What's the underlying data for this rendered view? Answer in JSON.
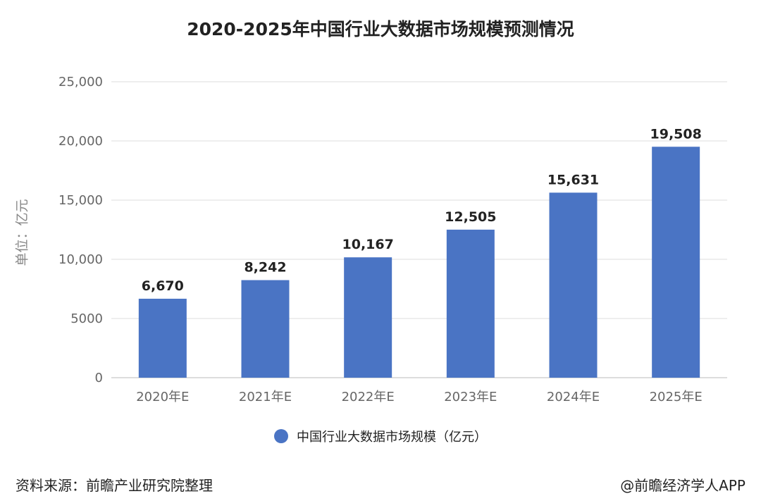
{
  "title": "2020-2025年中国行业大数据市场规模预测情况",
  "footer": {
    "source": "资料来源：前瞻产业研究院整理",
    "credit": "@前瞻经济学人APP"
  },
  "colors": {
    "bar": "#4a74c4",
    "grid": "#dddddd",
    "axis_text": "#666666"
  },
  "chart_data": {
    "type": "bar",
    "title": "2020-2025年中国行业大数据市场规模预测情况",
    "ylabel": "单位：亿元",
    "xlabel": "",
    "categories": [
      "2020年E",
      "2021年E",
      "2022年E",
      "2023年E",
      "2024年E",
      "2025年E"
    ],
    "series": [
      {
        "name": "中国行业大数据市场规模（亿元）",
        "values": [
          6670,
          8242,
          10167,
          12505,
          15631,
          19508
        ]
      }
    ],
    "data_labels": [
      "6,670",
      "8,242",
      "10,167",
      "12,505",
      "15,631",
      "19,508"
    ],
    "ylim": [
      0,
      25000
    ],
    "yticks": [
      0,
      5000,
      10000,
      15000,
      20000,
      25000
    ],
    "ytick_labels": [
      "0",
      "5000",
      "10,000",
      "15,000",
      "20,000",
      "25,000"
    ],
    "grid": true,
    "legend_position": "bottom"
  }
}
